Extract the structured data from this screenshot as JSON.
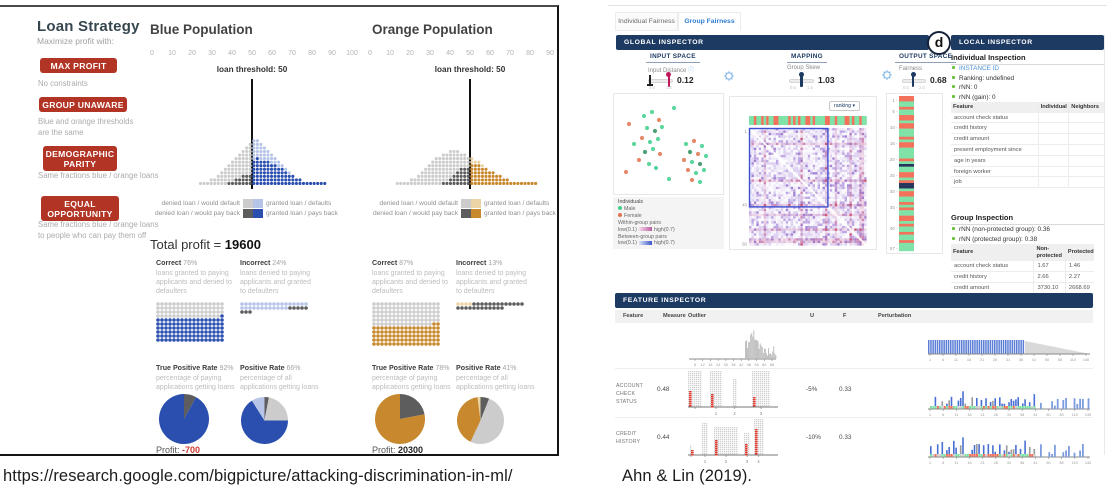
{
  "captions": {
    "left": "https://research.google.com/bigpicture/attacking-discrimination-in-ml/",
    "right": "Ahn & Lin (2019)."
  },
  "loan_demo": {
    "title": "Loan Strategy",
    "subtitle": "Maximize profit with:",
    "strategies": [
      {
        "label": "MAX PROFIT",
        "desc": "No constraints"
      },
      {
        "label": "GROUP UNAWARE",
        "desc": "Blue and orange thresholds are the same"
      },
      {
        "label": "DEMOGRAPHIC PARITY",
        "desc": "Same fractions blue / orange loans"
      },
      {
        "label": "EQUAL OPPORTUNITY",
        "desc": "Same fractions blue / orange loans to people who can pay them off"
      }
    ],
    "total_profit": {
      "label": "Total profit = ",
      "value": "19600"
    },
    "legend": {
      "denied_default": "denied loan / would default",
      "denied_payback": "denied loan / would pay back",
      "granted_default": "granted loan / defaults",
      "granted_payback": "granted loan / pays back"
    },
    "colors": {
      "dark_blue": "#2b4fae",
      "light_blue": "#b6c4e8",
      "dark_orange": "#c8882d",
      "light_orange": "#ecd4a6",
      "light_gray": "#cccccc",
      "dark_gray": "#5d5d5d",
      "button_red": "#b23425",
      "negative_red": "#d03b2f"
    }
  },
  "chart_data": [
    {
      "type": "dot-histogram",
      "population": "Blue Population",
      "threshold_label": "loan threshold: 50",
      "threshold": 50,
      "x_max": 100,
      "x_ticks": [
        0,
        10,
        20,
        30,
        40,
        50,
        60,
        70,
        80,
        90,
        100
      ],
      "threshold_col": 15,
      "totals": [
        1,
        1,
        1,
        2,
        2,
        3,
        4,
        5,
        6,
        7,
        8,
        9,
        10,
        11,
        12,
        13,
        13,
        12,
        11,
        10,
        9,
        8,
        7,
        6,
        5,
        4,
        3,
        2,
        2,
        1,
        1,
        1,
        1,
        1,
        1,
        1
      ],
      "special": [
        0,
        0,
        0,
        0,
        0,
        0,
        0,
        0,
        1,
        1,
        2,
        2,
        3,
        3,
        3,
        6,
        5,
        5,
        4,
        3,
        3,
        2,
        2,
        1,
        1,
        1,
        0,
        0,
        0,
        0,
        0,
        0,
        0,
        0,
        0,
        0
      ]
    },
    {
      "type": "dot-histogram",
      "population": "Orange Population",
      "threshold_label": "loan threshold: 50",
      "threshold": 50,
      "x_max": 90,
      "x_ticks": [
        0,
        10,
        20,
        30,
        40,
        50,
        60,
        70,
        80,
        90
      ],
      "threshold_col": 21,
      "totals": [
        1,
        1,
        1,
        1,
        2,
        2,
        3,
        4,
        5,
        6,
        7,
        8,
        8,
        9,
        9,
        10,
        10,
        10,
        9,
        9,
        8,
        8,
        7,
        7,
        6,
        5,
        4,
        4,
        3,
        3,
        2,
        2,
        1,
        1,
        1,
        1,
        1,
        1,
        1,
        1
      ],
      "special": [
        0,
        0,
        0,
        0,
        0,
        0,
        0,
        0,
        0,
        0,
        0,
        0,
        0,
        1,
        1,
        2,
        3,
        4,
        5,
        5,
        5,
        2,
        1,
        1,
        1,
        0,
        0,
        0,
        0,
        0,
        0,
        0,
        0,
        0,
        0,
        0,
        0,
        0,
        0,
        0
      ]
    },
    {
      "type": "dot-grid-set",
      "grids": [
        {
          "id": "blue_correct",
          "cols": 17,
          "segments": [
            [
              "light_gray",
              67
            ],
            [
              "dark_blue",
              103
            ]
          ]
        },
        {
          "id": "blue_incorrect",
          "cols": 17,
          "segments": [
            [
              "light_blue",
              29
            ],
            [
              "dark_gray",
              8
            ]
          ]
        },
        {
          "id": "orange_correct",
          "cols": 17,
          "segments": [
            [
              "light_gray",
              100
            ],
            [
              "dark_orange",
              87
            ]
          ]
        },
        {
          "id": "orange_incorrect",
          "cols": 17,
          "segments": [
            [
              "light_orange",
              4
            ],
            [
              "dark_gray",
              25
            ]
          ]
        }
      ]
    },
    {
      "type": "pie-set",
      "pies": [
        {
          "id": "blue_tpr",
          "slices": [
            [
              "dark_gray",
              8
            ],
            [
              "dark_blue",
              92
            ]
          ]
        },
        {
          "id": "blue_pr",
          "slices": [
            [
              "dark_gray",
              3
            ],
            [
              "light_gray",
              22
            ],
            [
              "dark_blue",
              66
            ],
            [
              "light_blue",
              9
            ]
          ]
        },
        {
          "id": "orange_tpr",
          "slices": [
            [
              "dark_gray",
              22
            ],
            [
              "dark_orange",
              78
            ]
          ]
        },
        {
          "id": "orange_pr",
          "slices": [
            [
              "dark_gray",
              6
            ],
            [
              "light_gray",
              51
            ],
            [
              "dark_orange",
              41
            ],
            [
              "light_orange",
              2
            ]
          ]
        }
      ]
    }
  ],
  "loan_stats": {
    "blue": {
      "correct": {
        "title": "Correct",
        "pct": "76%",
        "desc": "loans granted to paying applicants and denied to defaulters"
      },
      "incorrect": {
        "title": "Incorrect",
        "pct": "24%",
        "desc": "loans denied to paying applicants and granted to defaulters"
      },
      "tpr": {
        "title": "True Positive Rate",
        "pct": "92%",
        "desc": "percentage of paying applications getting loans"
      },
      "pr": {
        "title": "Positive Rate",
        "pct": "66%",
        "desc": "percentage of all applications getting loans"
      },
      "profit_label": "Profit:",
      "profit_value": "-700",
      "profit_negative": true
    },
    "orange": {
      "correct": {
        "title": "Correct",
        "pct": "87%",
        "desc": "loans granted to paying applicants and denied to defaulters"
      },
      "incorrect": {
        "title": "Incorrect",
        "pct": "13%",
        "desc": "loans denied to paying applicants and granted to defaulters"
      },
      "tpr": {
        "title": "True Positive Rate",
        "pct": "78%",
        "desc": "percentage of paying applications getting loans"
      },
      "pr": {
        "title": "Positive Rate",
        "pct": "41%",
        "desc": "percentage of all applications getting loans"
      },
      "profit_label": "Profit:",
      "profit_value": "20300",
      "profit_negative": false
    }
  },
  "fairsight": {
    "tabs": [
      {
        "label": "Individual Fairness",
        "active": false
      },
      {
        "label": "Group Fairness",
        "active": true
      }
    ],
    "figure_label": "d",
    "global_inspector_title": "GLOBAL INSPECTOR",
    "local_inspector_title": "LOCAL INSPECTOR",
    "columns": {
      "input": {
        "title": "INPUT SPACE",
        "metric": "Input Distance",
        "value": "0.12",
        "min": "0.0",
        "max": "1.2"
      },
      "mapping": {
        "title": "MAPPING",
        "metric": "Group Skew",
        "value": "1.03",
        "min": "0.5",
        "max": "1.5"
      },
      "output": {
        "title": "OUTPUT SPACE",
        "metric": "Fairness",
        "value": "0.68",
        "min": "0.0",
        "max": "2.0"
      }
    },
    "ranking_button": "ranking ▾",
    "scatter": {
      "legend": {
        "title": "Individuals",
        "male": "Male",
        "female": "Female",
        "within": "Within-group pairs",
        "between": "Between-group pairs",
        "low": "low(0.1)",
        "high": "high(0.7)"
      },
      "dots": [
        [
          30,
          22,
          "g"
        ],
        [
          38,
          18,
          "g"
        ],
        [
          45,
          26,
          "o"
        ],
        [
          33,
          34,
          "g"
        ],
        [
          41,
          37,
          "d"
        ],
        [
          28,
          44,
          "o"
        ],
        [
          36,
          48,
          "g"
        ],
        [
          44,
          45,
          "g"
        ],
        [
          39,
          55,
          "g"
        ],
        [
          31,
          58,
          "d"
        ],
        [
          46,
          60,
          "o"
        ],
        [
          25,
          66,
          "o"
        ],
        [
          35,
          70,
          "g"
        ],
        [
          42,
          74,
          "g"
        ],
        [
          20,
          50,
          "g"
        ],
        [
          48,
          33,
          "g"
        ],
        [
          72,
          50,
          "g"
        ],
        [
          80,
          47,
          "o"
        ],
        [
          88,
          52,
          "g"
        ],
        [
          76,
          58,
          "d"
        ],
        [
          84,
          60,
          "o"
        ],
        [
          92,
          62,
          "g"
        ],
        [
          70,
          66,
          "o"
        ],
        [
          78,
          68,
          "g"
        ],
        [
          86,
          70,
          "d"
        ],
        [
          74,
          76,
          "o"
        ],
        [
          82,
          79,
          "g"
        ],
        [
          90,
          76,
          "g"
        ],
        [
          78,
          86,
          "o"
        ],
        [
          86,
          88,
          "g"
        ],
        [
          15,
          30,
          "o"
        ],
        [
          55,
          85,
          "g"
        ],
        [
          60,
          14,
          "g"
        ],
        [
          12,
          78,
          "o"
        ]
      ]
    },
    "heatmap": {
      "seed": 11,
      "n": 48,
      "x_labels": [
        "1",
        "40",
        "50"
      ],
      "y_labels": [
        "1",
        "40",
        "60"
      ]
    },
    "output_stripe": {
      "pattern": "rrggrggrrgrrgggrgrrggggrgkggrrgrkkgrrggrgrggrrgrggrggrggg",
      "labels": [
        [
          1,
          4
        ],
        [
          5,
          15
        ],
        [
          10,
          31
        ],
        [
          15,
          47
        ],
        [
          20,
          63
        ],
        [
          25,
          79
        ],
        [
          30,
          95
        ],
        [
          35,
          111
        ],
        [
          40,
          132
        ],
        [
          57,
          152
        ]
      ]
    },
    "mapping_stripe": "ggrggrgrggrrggggrgrgrggrrgrggggrrggrgggrrgrggrgg",
    "individual_inspection": {
      "title": "Individual Inspection",
      "items": [
        {
          "label": "INSTANCE ID",
          "accent": true
        },
        {
          "label": "Ranking: undefined",
          "accent": false
        },
        {
          "label": "rNN: 0",
          "accent": false
        },
        {
          "label": "rNN (gain): 0",
          "accent": false
        }
      ],
      "table": {
        "headers": [
          "Feature",
          "Individual",
          "Neighbors"
        ],
        "rows": [
          "account check status",
          "credit history",
          "credit amount",
          "present employment since",
          "age in years",
          "foreign worker",
          "job"
        ]
      }
    },
    "group_inspection": {
      "title": "Group Inspection",
      "items": [
        {
          "label": "rNN (non-protected group): 0.36"
        },
        {
          "label": "rNN (protected group): 0.38"
        }
      ],
      "table": {
        "headers": [
          "Feature",
          "Non-protected",
          "Protected"
        ],
        "rows": [
          [
            "account check status",
            "1.67",
            "1.46"
          ],
          [
            "credit history",
            "2.66",
            "2.27"
          ],
          [
            "credit amount",
            "3730.10",
            "2668.69"
          ]
        ]
      }
    },
    "feature_inspector": {
      "title": "FEATURE INSPECTOR",
      "headers": [
        "Feature",
        "Measure",
        "Outlier",
        "U",
        "F",
        "Perturbation"
      ],
      "summary_hist_ticks": [
        "6",
        "12",
        "18",
        "24",
        "30",
        "36",
        "42",
        "48",
        "54",
        "60",
        "66"
      ],
      "pert_ticks": [
        "1",
        "6",
        "11",
        "16",
        "21",
        "26",
        "31",
        "36",
        "41",
        "50",
        "80",
        "110",
        "140"
      ],
      "rows": [
        {
          "feature": "ACCOUNT CHECK STATUS",
          "measure": "0.48",
          "u": "-5%",
          "f": "0.33",
          "outlier_groups": [
            [
              0,
              14,
              36,
              16
            ],
            [
              22,
              12,
              36,
              13
            ],
            [
              45,
              3,
              28,
              0
            ],
            [
              64,
              18,
              36,
              10
            ]
          ],
          "outlier_ticks": [
            "",
            "1",
            "2",
            "3"
          ],
          "pert_seed": 21
        },
        {
          "feature": "CREDIT HISTORY",
          "measure": "0.44",
          "u": "-10%",
          "f": "0.33",
          "outlier_groups": [
            [
              2,
              2,
              10,
              5
            ],
            [
              14,
              6,
              32,
              0
            ],
            [
              26,
              24,
              28,
              15
            ],
            [
              56,
              6,
              22,
              11
            ],
            [
              66,
              9,
              36,
              26
            ]
          ],
          "outlier_ticks": [
            "",
            "1",
            "2",
            "3",
            "4"
          ],
          "pert_seed": 33
        }
      ]
    }
  }
}
